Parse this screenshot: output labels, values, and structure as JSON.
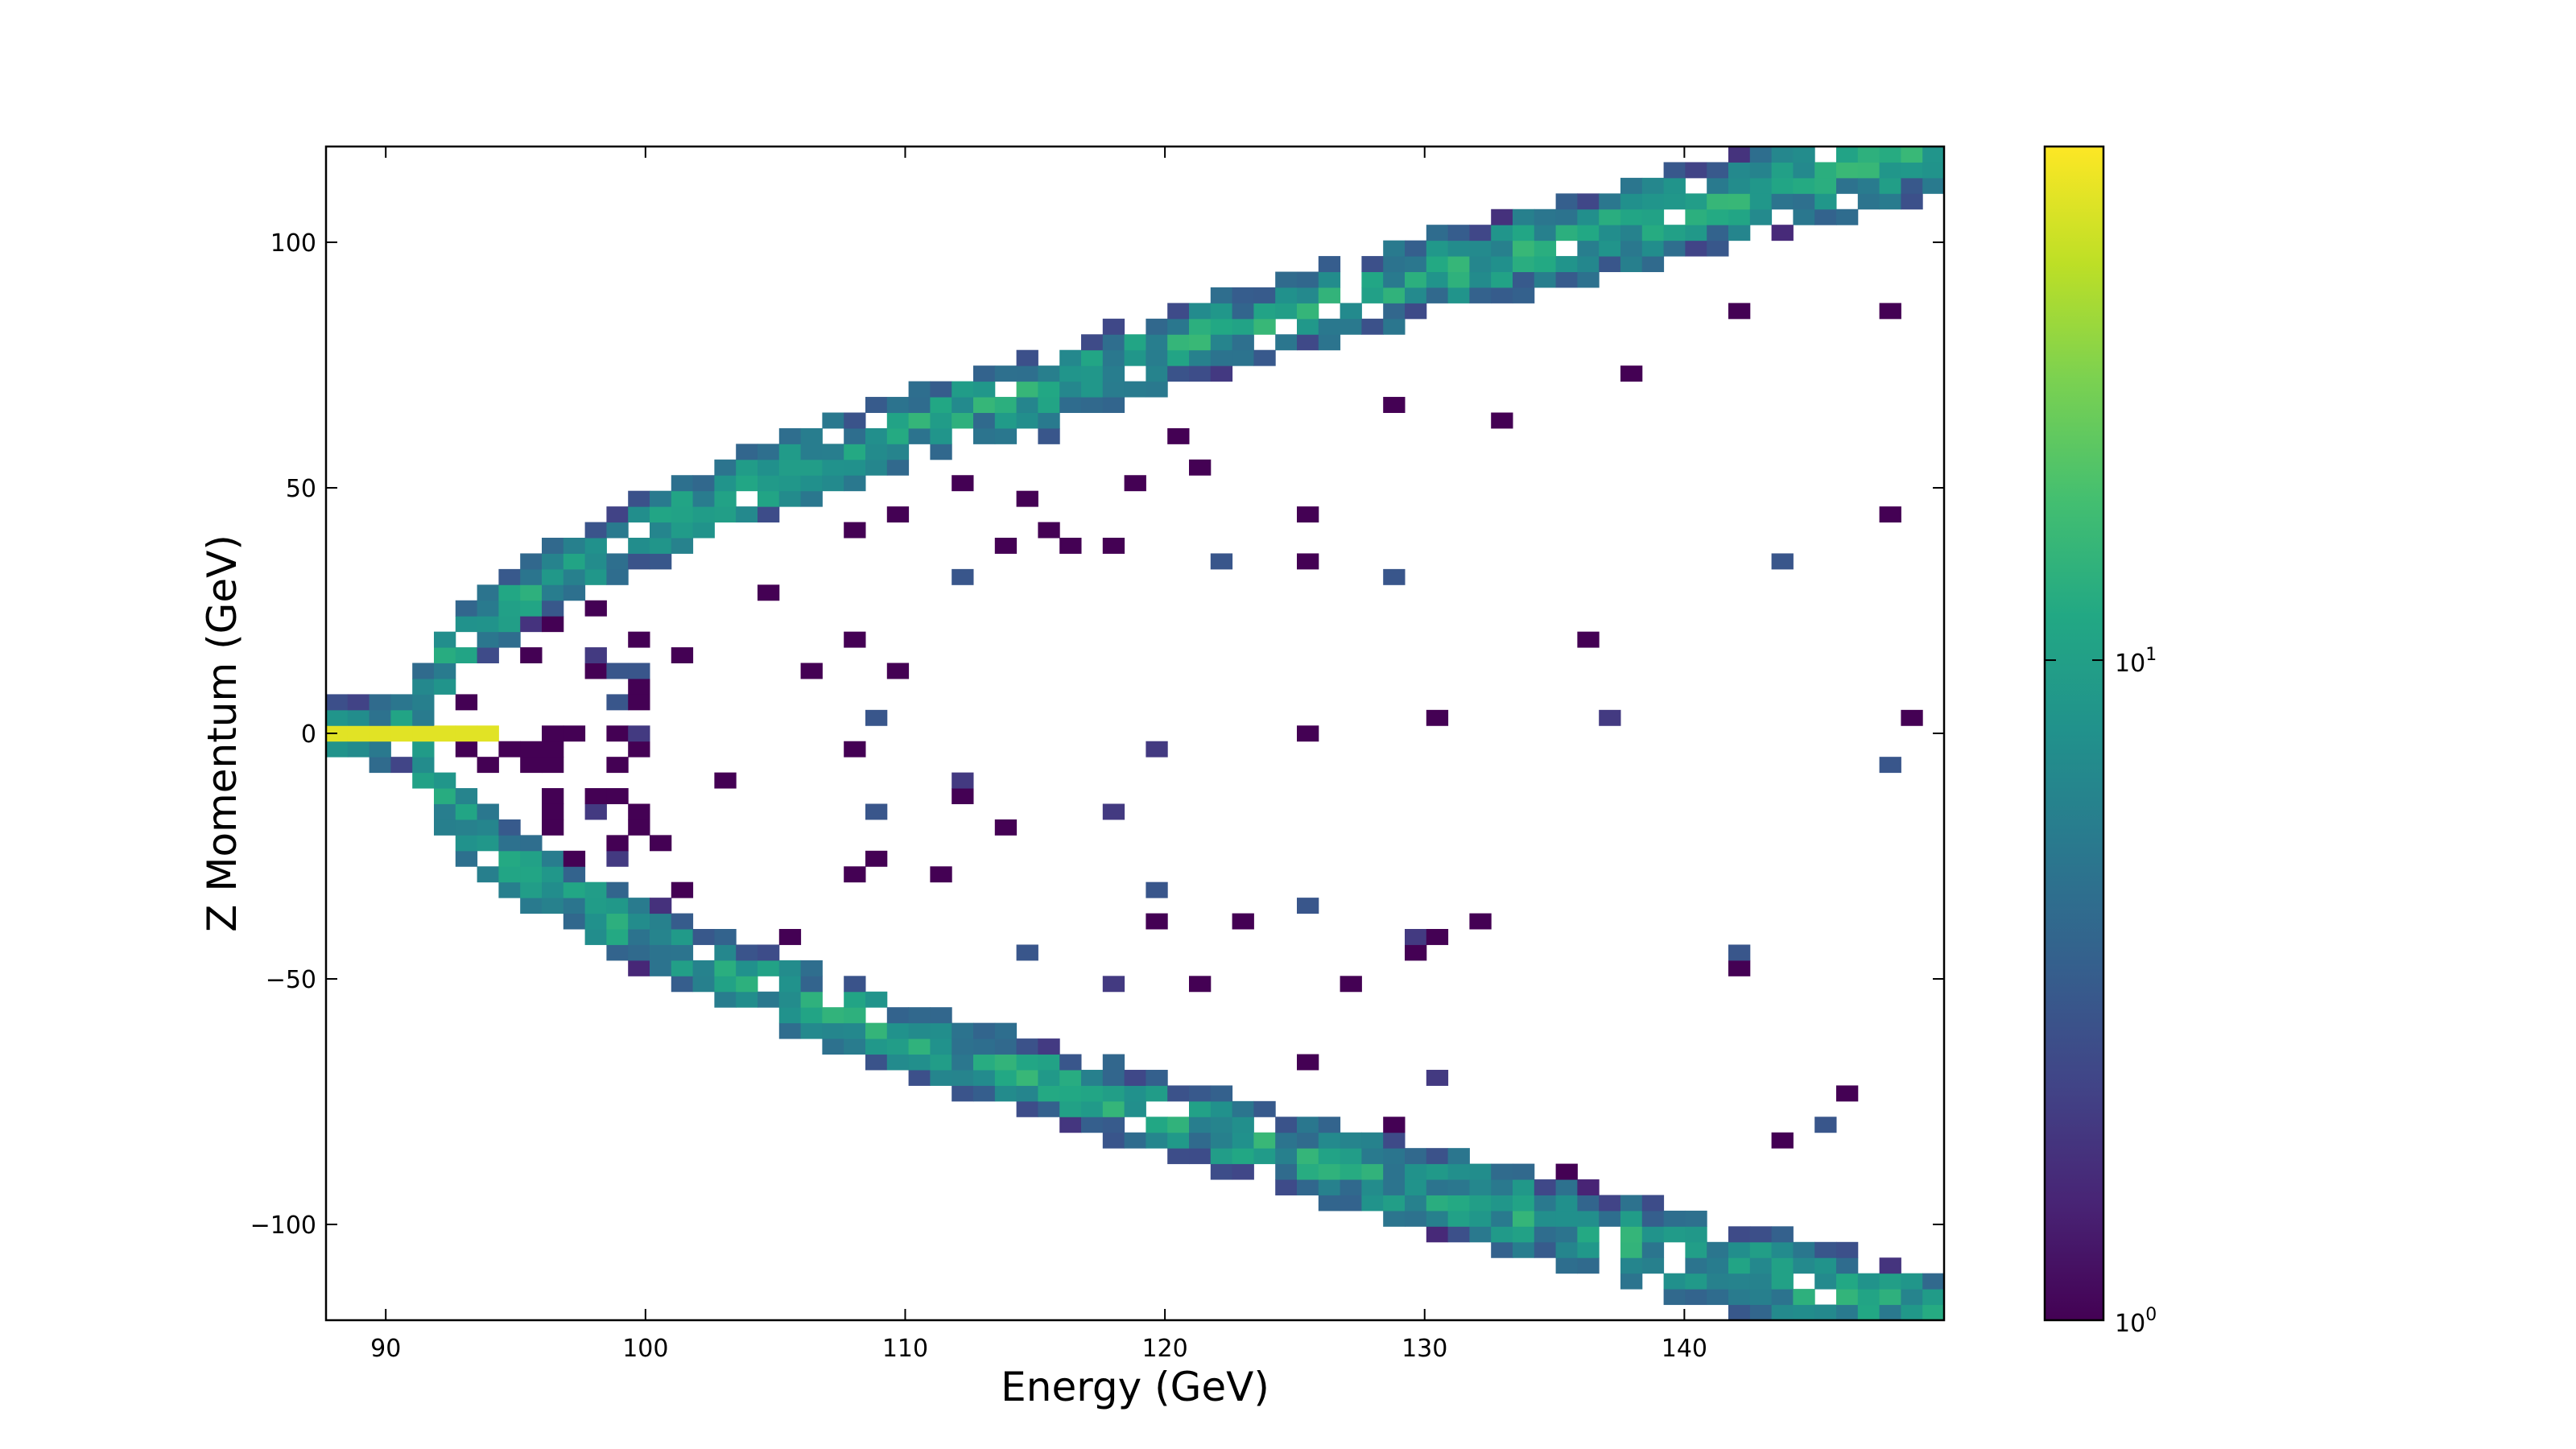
{
  "chart_data": {
    "type": "heatmap",
    "title": "",
    "xlabel": "Energy (GeV)",
    "ylabel": "Z Momentum (GeV)",
    "xlim": [
      87.7,
      150.0
    ],
    "ylim": [
      -119.5,
      119.5
    ],
    "x_ticks": [
      90,
      100,
      110,
      120,
      130,
      140
    ],
    "x_tick_labels": [
      "90",
      "100",
      "110",
      "120",
      "130",
      "140"
    ],
    "y_ticks": [
      100,
      50,
      0,
      -50,
      -100
    ],
    "y_tick_labels": [
      "100",
      "50",
      "0",
      "−50",
      "−100"
    ],
    "bins": {
      "x": 75,
      "y": 75
    },
    "colorscale": "viridis",
    "color_scale_type": "log",
    "colorbar": {
      "min": 1,
      "max": 60,
      "ticks": [
        {
          "value": 1,
          "base": "10",
          "exponent": "0"
        },
        {
          "value": 10,
          "base": "10",
          "exponent": "1"
        }
      ]
    },
    "grid": false,
    "legend": "none",
    "description": [
      {
        "region": "central band",
        "x": [
          87.7,
          94.5
        ],
        "y": 0,
        "count_approx": 50
      },
      {
        "region": "upper branch",
        "relation": "pz ≈ +sqrt(E^2 - 91.2^2)",
        "count_approx": 5
      },
      {
        "region": "lower branch",
        "relation": "pz ≈ -sqrt(E^2 - 91.2^2)",
        "count_approx": 5
      },
      {
        "region": "interior scatter",
        "count_approx": 1
      }
    ]
  }
}
